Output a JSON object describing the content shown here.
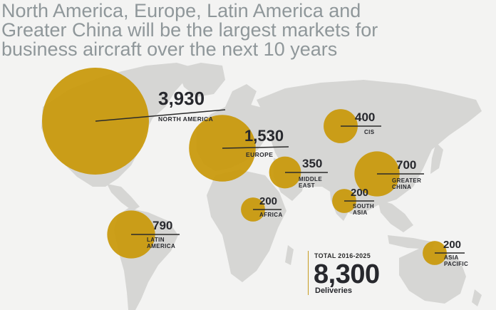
{
  "headline": {
    "line1": "North America, Europe, Latin America and",
    "line2": "Greater China will be the largest markets for",
    "line3": "business aircraft over the next 10 years"
  },
  "colors": {
    "background": "#f3f3f2",
    "land": "#d6d6d4",
    "marker": "#c99a0e",
    "leader_line": "#2b2b2b",
    "value_text": "#27282d",
    "headline_text": "#8f979a"
  },
  "total": {
    "label": "TOTAL 2016-2025",
    "value": "8,300",
    "unit": "Deliveries"
  },
  "markets": [
    {
      "id": "north-america",
      "value": 3930,
      "value_label": "3,930",
      "name_lines": [
        "NORTH AMERICA"
      ]
    },
    {
      "id": "europe",
      "value": 1530,
      "value_label": "1,530",
      "name_lines": [
        "EUROPE"
      ]
    },
    {
      "id": "cis",
      "value": 400,
      "value_label": "400",
      "name_lines": [
        "CIS"
      ]
    },
    {
      "id": "middle-east",
      "value": 350,
      "value_label": "350",
      "name_lines": [
        "MIDDLE",
        "EAST"
      ]
    },
    {
      "id": "greater-china",
      "value": 700,
      "value_label": "700",
      "name_lines": [
        "GREATER",
        "CHINA"
      ]
    },
    {
      "id": "africa",
      "value": 200,
      "value_label": "200",
      "name_lines": [
        "AFRICA"
      ]
    },
    {
      "id": "south-asia",
      "value": 200,
      "value_label": "200",
      "name_lines": [
        "SOUTH",
        "ASIA"
      ]
    },
    {
      "id": "latin-america",
      "value": 790,
      "value_label": "790",
      "name_lines": [
        "LATIN",
        "AMERICA"
      ]
    },
    {
      "id": "asia-pacific",
      "value": 200,
      "value_label": "200",
      "name_lines": [
        "ASIA",
        "PACIFIC"
      ]
    }
  ]
}
